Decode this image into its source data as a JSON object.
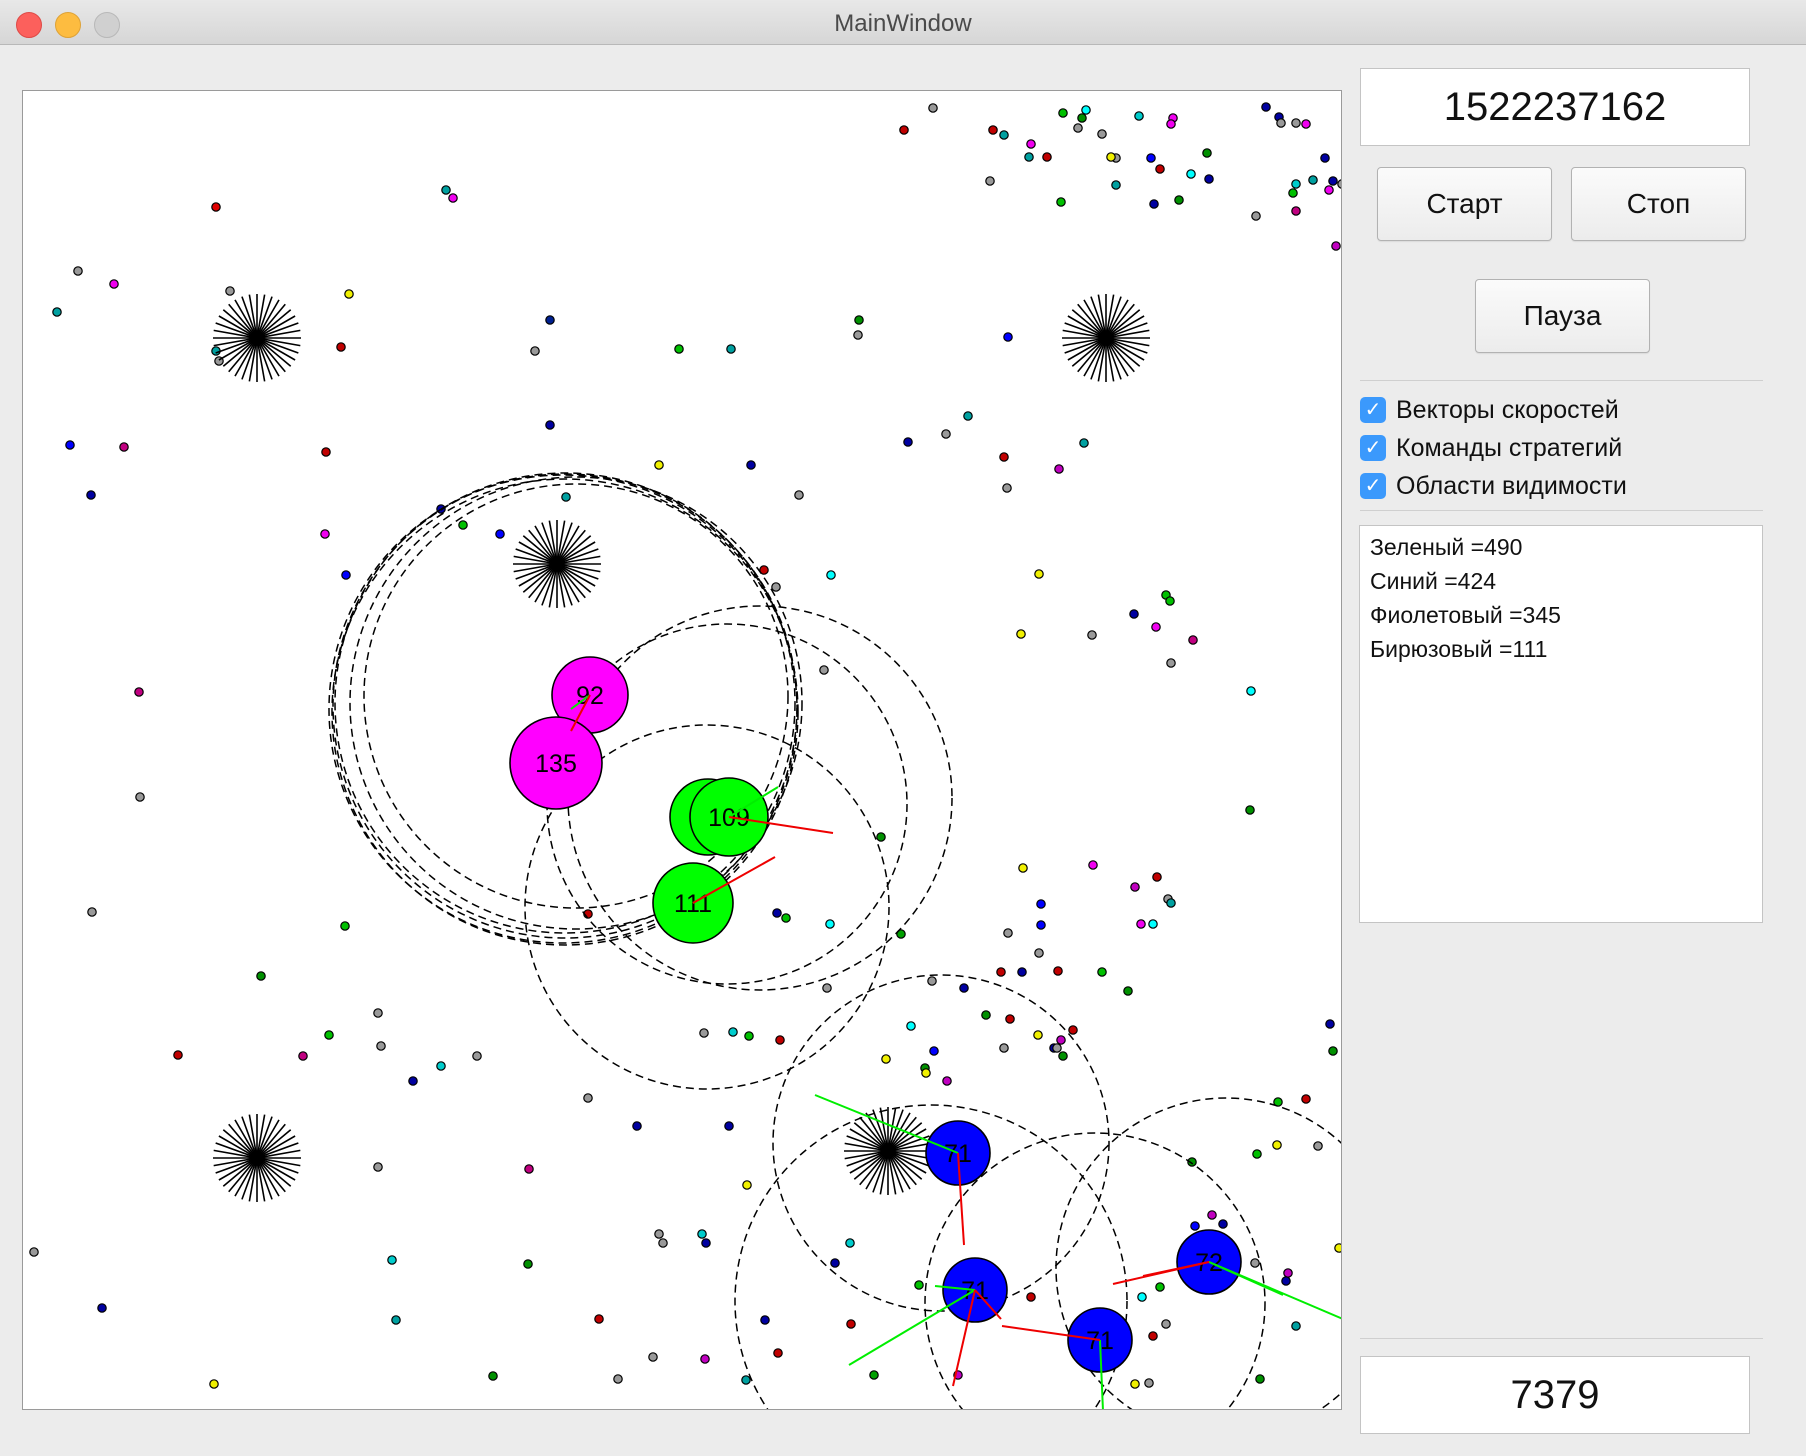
{
  "window": {
    "title": "MainWindow"
  },
  "controls": {
    "seed_value": "1522237162",
    "start_label": "Старт",
    "stop_label": "Стоп",
    "pause_label": "Пауза",
    "counter_value": "7379"
  },
  "options": [
    {
      "label": "Векторы скоростей",
      "checked": true
    },
    {
      "label": "Команды стратегий",
      "checked": true
    },
    {
      "label": "Области видимости",
      "checked": true
    }
  ],
  "stats": [
    "Зеленый =490",
    "Синий =424",
    "Фиолетовый =345",
    "Бирюзовый =111"
  ],
  "players": [
    {
      "label": "92",
      "color": "#ff00ff"
    },
    {
      "label": "135",
      "color": "#ff00ff"
    },
    {
      "label": "109",
      "color": "#00ff00"
    },
    {
      "label": "111",
      "color": "#00ff00"
    },
    {
      "label": "71",
      "color": "#0000ff"
    },
    {
      "label": "71",
      "color": "#0000ff"
    },
    {
      "label": "71",
      "color": "#0000ff"
    },
    {
      "label": "72",
      "color": "#0000ff"
    }
  ],
  "colors": {
    "magenta": "#ff00ff",
    "green": "#00ff00",
    "blue": "#0000ff",
    "velocity_vector": "#00ee00",
    "strategy_command": "#ee0000"
  },
  "icons": {
    "virus": "starburst-icon",
    "food": "food-pellet-icon",
    "checkbox": "checkmark-icon"
  }
}
